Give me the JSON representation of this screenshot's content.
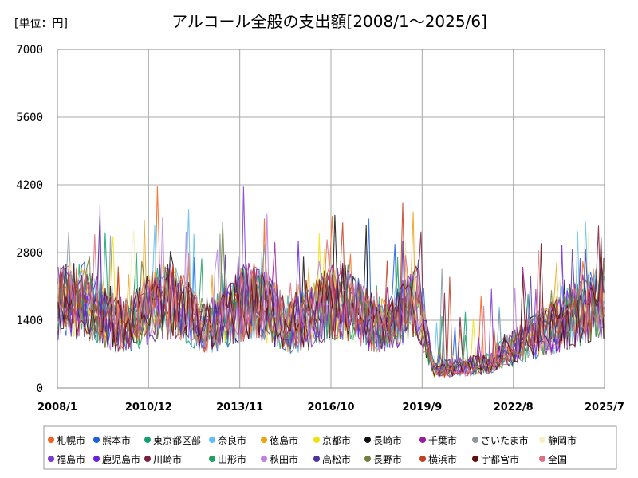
{
  "chart_data": {
    "type": "line",
    "title": "アルコール全般の支出額[2008/1～2025/6]",
    "unit_label": "[単位：円]",
    "ylim": [
      0,
      7000
    ],
    "y_ticks": [
      "0",
      "1400",
      "2800",
      "4200",
      "5600",
      "7000"
    ],
    "x_tick_labels": [
      "2008/1",
      "2010/12",
      "2013/11",
      "2016/10",
      "2019/9",
      "2022/8",
      "2025/7"
    ],
    "x_range": [
      "2008/1",
      "2025/7"
    ],
    "grid": true,
    "legend_position": "bottom",
    "series": [
      {
        "name": "札幌市",
        "color": "#f4611c"
      },
      {
        "name": "熊本市",
        "color": "#1f5fe0"
      },
      {
        "name": "東京都区部",
        "color": "#10a070"
      },
      {
        "name": "奈良市",
        "color": "#60c0f0"
      },
      {
        "name": "徳島市",
        "color": "#f0a010"
      },
      {
        "name": "京都市",
        "color": "#f0e010"
      },
      {
        "name": "長崎市",
        "color": "#101010"
      },
      {
        "name": "千葉市",
        "color": "#9a1a9a"
      },
      {
        "name": "さいたま市",
        "color": "#8a96a0"
      },
      {
        "name": "静岡市",
        "color": "#f4f0c0"
      },
      {
        "name": "福島市",
        "color": "#7a3ad0"
      },
      {
        "name": "鹿児島市",
        "color": "#6a20e0"
      },
      {
        "name": "川崎市",
        "color": "#7a2040"
      },
      {
        "name": "山形市",
        "color": "#20a060"
      },
      {
        "name": "秋田市",
        "color": "#c080e0"
      },
      {
        "name": "高松市",
        "color": "#5030a0"
      },
      {
        "name": "長野市",
        "color": "#708040"
      },
      {
        "name": "横浜市",
        "color": "#c04020"
      },
      {
        "name": "宇都宮市",
        "color": "#601010"
      },
      {
        "name": "全国",
        "color": "#e07080"
      }
    ]
  }
}
